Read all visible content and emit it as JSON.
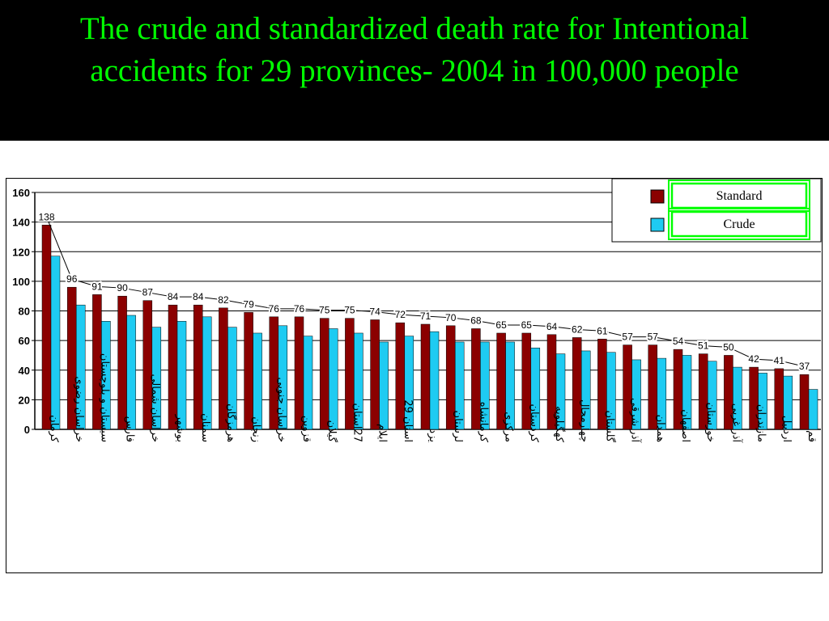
{
  "title": {
    "line1": "The crude and standardized death rate for Intentional",
    "line2": "accidents for 29 provinces- 2004 in 100,000 people"
  },
  "colors": {
    "background": "#000000",
    "title": "#00ff00",
    "standard": "#8b0000",
    "crude": "#1ecbf2",
    "legend_highlight": "#00ff00"
  },
  "chart_data": {
    "type": "bar",
    "title": "",
    "xlabel": "",
    "ylabel": "",
    "ylim": [
      0,
      160
    ],
    "yticks": [
      0,
      20,
      40,
      60,
      80,
      100,
      120,
      140,
      160
    ],
    "grid": true,
    "legend_position": "top-right",
    "categories": [
      "کرمان",
      "خراسان رضوی",
      "سیستان و بلوچستان",
      "فارس",
      "خراسان شمالی",
      "بوشهر",
      "سمنان",
      "هرمزگان",
      "زنجان",
      "خراسان جنوبی",
      "قزوین",
      "گیلان",
      "27استان",
      "ایلام",
      "استان 29",
      "یزد",
      "لرستان",
      "کرمانشاه",
      "مرکزی",
      "کردستان",
      "کهگیلویه",
      "چهارمحال",
      "گلستان",
      "آذر شرقی",
      "همدان",
      "اصفهان",
      "خوزستان",
      "آذر غربی",
      "مازندران",
      "اردبیل",
      "قم"
    ],
    "series": [
      {
        "name": "Standard",
        "color": "#8b0000",
        "values": [
          138,
          96,
          91,
          90,
          87,
          84,
          84,
          82,
          79,
          76,
          76,
          75,
          75,
          74,
          72,
          71,
          70,
          68,
          65,
          65,
          64,
          62,
          61,
          57,
          57,
          54,
          51,
          50,
          42,
          41,
          37
        ],
        "data_labels": [
          "138",
          "96",
          "91",
          "90",
          "87",
          "84",
          "84",
          "82",
          "79",
          "76",
          "76",
          "75",
          "75",
          "74",
          "72",
          "71",
          "70",
          "68",
          "65",
          "65",
          "64",
          "62",
          "61",
          "57",
          "57",
          "54",
          "51",
          "50",
          "42",
          "41",
          "37"
        ]
      },
      {
        "name": "Crude",
        "color": "#1ecbf2",
        "values": [
          117,
          84,
          73,
          77,
          69,
          73,
          76,
          69,
          65,
          70,
          63,
          68,
          65,
          59,
          63,
          66,
          59,
          59,
          59,
          55,
          51,
          53,
          52,
          47,
          48,
          50,
          46,
          42,
          38,
          36,
          27
        ]
      }
    ]
  }
}
